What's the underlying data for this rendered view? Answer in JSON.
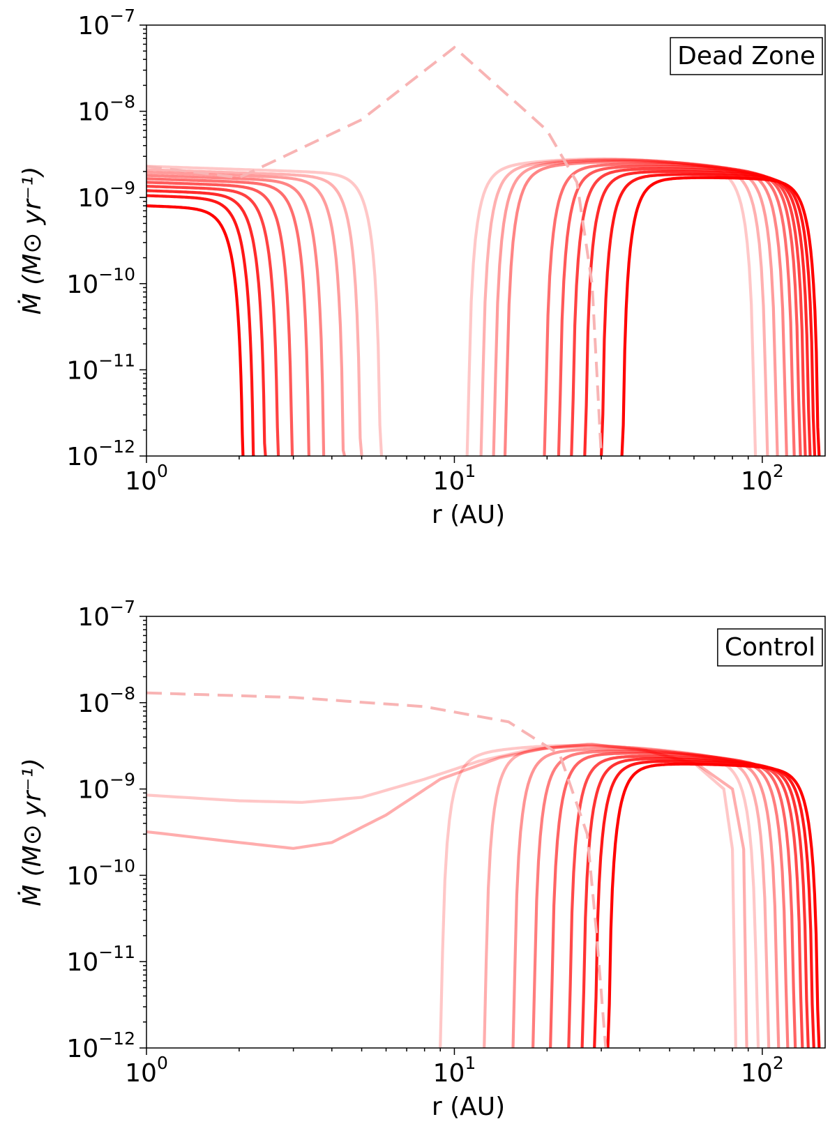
{
  "chart_data": [
    {
      "type": "line",
      "panel": "top",
      "legend": "Dead Zone",
      "xlabel": "r (AU)",
      "ylabel": "Ṁ (M⊙ yr⁻¹)",
      "xscale": "log",
      "yscale": "log",
      "xlim": [
        1,
        160
      ],
      "ylim": [
        1e-12,
        1e-07
      ],
      "x_ticks": [
        {
          "base": "10",
          "exp": "0",
          "value": 1
        },
        {
          "base": "10",
          "exp": "1",
          "value": 10
        },
        {
          "base": "10",
          "exp": "2",
          "value": 100
        }
      ],
      "y_ticks": [
        {
          "base": "10",
          "exp": "−7",
          "value": 1e-07
        },
        {
          "base": "10",
          "exp": "−8",
          "value": 1e-08
        },
        {
          "base": "10",
          "exp": "−9",
          "value": 1e-09
        },
        {
          "base": "10",
          "exp": "−10",
          "value": 1e-10
        },
        {
          "base": "10",
          "exp": "−11",
          "value": 1e-11
        },
        {
          "base": "10",
          "exp": "−12",
          "value": 1e-12
        }
      ],
      "legend_position": "top-right",
      "grid": false,
      "dashed_curve": {
        "points": [
          [
            1,
            2.3e-09
          ],
          [
            2,
            1.7e-09
          ],
          [
            5,
            8e-09
          ],
          [
            10,
            5.5e-08
          ],
          [
            20,
            6e-09
          ],
          [
            25,
            1.5e-09
          ],
          [
            28,
            1e-10
          ],
          [
            30,
            1e-12
          ]
        ]
      },
      "inner_curves": [
        {
          "r_start": 1,
          "mdot_start": 2.3e-09,
          "r_cut": 5.8
        },
        {
          "r_start": 1,
          "mdot_start": 2.1e-09,
          "r_cut": 5.0
        },
        {
          "r_start": 1,
          "mdot_start": 1.95e-09,
          "r_cut": 4.4
        },
        {
          "r_start": 1,
          "mdot_start": 1.8e-09,
          "r_cut": 3.8
        },
        {
          "r_start": 1,
          "mdot_start": 1.65e-09,
          "r_cut": 3.4
        },
        {
          "r_start": 1,
          "mdot_start": 1.5e-09,
          "r_cut": 3.0
        },
        {
          "r_start": 1,
          "mdot_start": 1.35e-09,
          "r_cut": 2.7
        },
        {
          "r_start": 1,
          "mdot_start": 1.2e-09,
          "r_cut": 2.45
        },
        {
          "r_start": 1,
          "mdot_start": 1.05e-09,
          "r_cut": 2.25
        },
        {
          "r_start": 1,
          "mdot_start": 8e-10,
          "r_cut": 2.08
        }
      ],
      "outer_curves": [
        {
          "r_in": 11.0,
          "r_peak": 30,
          "mdot_peak": 2.8e-09,
          "r_out": 95
        },
        {
          "r_in": 12.2,
          "r_peak": 32,
          "mdot_peak": 2.75e-09,
          "r_out": 104
        },
        {
          "r_in": 13.4,
          "r_peak": 34,
          "mdot_peak": 2.7e-09,
          "r_out": 112
        },
        {
          "r_in": 14.6,
          "r_peak": 36,
          "mdot_peak": 2.6e-09,
          "r_out": 120
        },
        {
          "r_in": 19.6,
          "r_peak": 40,
          "mdot_peak": 2.45e-09,
          "r_out": 127
        },
        {
          "r_in": 21.8,
          "r_peak": 43,
          "mdot_peak": 2.3e-09,
          "r_out": 133
        },
        {
          "r_in": 24.0,
          "r_peak": 46,
          "mdot_peak": 2.15e-09,
          "r_out": 138
        },
        {
          "r_in": 26.5,
          "r_peak": 50,
          "mdot_peak": 2e-09,
          "r_out": 143
        },
        {
          "r_in": 30.0,
          "r_peak": 55,
          "mdot_peak": 1.85e-09,
          "r_out": 148
        },
        {
          "r_in": 35.0,
          "r_peak": 62,
          "mdot_peak": 1.7e-09,
          "r_out": 153
        }
      ]
    },
    {
      "type": "line",
      "panel": "bottom",
      "legend": "Control",
      "xlabel": "r (AU)",
      "ylabel": "Ṁ (M⊙ yr⁻¹)",
      "xscale": "log",
      "yscale": "log",
      "xlim": [
        1,
        160
      ],
      "ylim": [
        1e-12,
        1e-07
      ],
      "x_ticks": [
        {
          "base": "10",
          "exp": "0",
          "value": 1
        },
        {
          "base": "10",
          "exp": "1",
          "value": 10
        },
        {
          "base": "10",
          "exp": "2",
          "value": 100
        }
      ],
      "y_ticks": [
        {
          "base": "10",
          "exp": "−7",
          "value": 1e-07
        },
        {
          "base": "10",
          "exp": "−8",
          "value": 1e-08
        },
        {
          "base": "10",
          "exp": "−9",
          "value": 1e-09
        },
        {
          "base": "10",
          "exp": "−10",
          "value": 1e-10
        },
        {
          "base": "10",
          "exp": "−11",
          "value": 1e-11
        },
        {
          "base": "10",
          "exp": "−12",
          "value": 1e-12
        }
      ],
      "legend_position": "top-right",
      "grid": false,
      "dashed_curve": {
        "points": [
          [
            1,
            1.3e-08
          ],
          [
            3,
            1.15e-08
          ],
          [
            8,
            9e-09
          ],
          [
            15,
            6e-09
          ],
          [
            22,
            2.5e-09
          ],
          [
            27,
            3e-10
          ],
          [
            29,
            2e-11
          ],
          [
            31,
            1e-12
          ]
        ]
      },
      "inner_flat_curves": [
        {
          "points": [
            [
              1,
              8.5e-10
            ],
            [
              2,
              7.3e-10
            ],
            [
              3.2,
              7e-10
            ],
            [
              5,
              8e-10
            ],
            [
              8,
              1.3e-09
            ],
            [
              12,
              2.1e-09
            ],
            [
              18,
              2.9e-09
            ],
            [
              27,
              3.3e-09
            ],
            [
              40,
              2.9e-09
            ],
            [
              60,
              2e-09
            ],
            [
              75,
              1e-09
            ],
            [
              80,
              2e-10
            ],
            [
              82,
              1e-12
            ]
          ]
        },
        {
          "points": [
            [
              1,
              3.2e-10
            ],
            [
              2,
              2.4e-10
            ],
            [
              3,
              2.05e-10
            ],
            [
              4,
              2.4e-10
            ],
            [
              6,
              5e-10
            ],
            [
              9,
              1.3e-09
            ],
            [
              14,
              2.3e-09
            ],
            [
              20,
              3e-09
            ],
            [
              28,
              3.3e-09
            ],
            [
              42,
              2.8e-09
            ],
            [
              62,
              1.9e-09
            ],
            [
              80,
              1e-09
            ],
            [
              87,
              2e-10
            ],
            [
              89,
              1e-12
            ]
          ]
        }
      ],
      "outer_curves": [
        {
          "r_in": 9.0,
          "r_peak": 25,
          "mdot_peak": 3.2e-09,
          "r_out": 97
        },
        {
          "r_in": 12.5,
          "r_peak": 28,
          "mdot_peak": 3.1e-09,
          "r_out": 105
        },
        {
          "r_in": 15.5,
          "r_peak": 31,
          "mdot_peak": 2.9e-09,
          "r_out": 113
        },
        {
          "r_in": 18.0,
          "r_peak": 34,
          "mdot_peak": 2.75e-09,
          "r_out": 121
        },
        {
          "r_in": 20.5,
          "r_peak": 37,
          "mdot_peak": 2.6e-09,
          "r_out": 128
        },
        {
          "r_in": 23.5,
          "r_peak": 40,
          "mdot_peak": 2.4e-09,
          "r_out": 135
        },
        {
          "r_in": 26.0,
          "r_peak": 44,
          "mdot_peak": 2.25e-09,
          "r_out": 141
        },
        {
          "r_in": 28.5,
          "r_peak": 48,
          "mdot_peak": 2.1e-09,
          "r_out": 147
        },
        {
          "r_in": 31.5,
          "r_peak": 53,
          "mdot_peak": 1.95e-09,
          "r_out": 153
        }
      ]
    }
  ],
  "colors": {
    "line": "#ff0000",
    "dashed": "#f8b4b4",
    "axes": "#000000"
  }
}
